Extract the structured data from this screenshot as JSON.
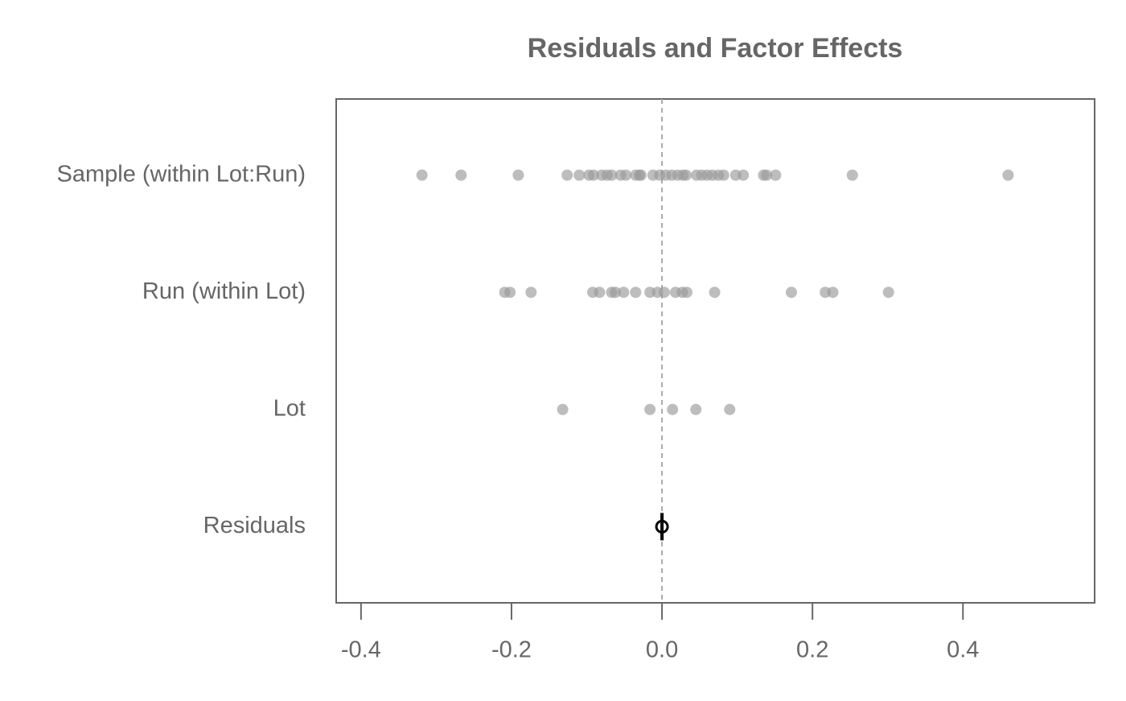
{
  "chart_data": {
    "type": "strip",
    "title": "Residuals and Factor Effects",
    "series": [
      {
        "name": "Sample (within Lot:Run)",
        "color": "#999999",
        "values": [
          -0.319,
          -0.267,
          -0.191,
          -0.126,
          -0.11,
          -0.097,
          -0.091,
          -0.08,
          -0.073,
          -0.067,
          -0.055,
          -0.048,
          -0.035,
          -0.03,
          -0.028,
          -0.012,
          -0.003,
          0.005,
          0.013,
          0.021,
          0.028,
          0.032,
          0.046,
          0.053,
          0.06,
          0.067,
          0.075,
          0.082,
          0.098,
          0.108,
          0.135,
          0.139,
          0.151,
          0.253,
          0.46
        ]
      },
      {
        "name": "Run (within Lot)",
        "color": "#999999",
        "values": [
          -0.209,
          -0.202,
          -0.174,
          -0.092,
          -0.083,
          -0.067,
          -0.062,
          -0.051,
          -0.035,
          -0.016,
          -0.006,
          0.003,
          0.018,
          0.027,
          0.033,
          0.07,
          0.172,
          0.217,
          0.227,
          0.301
        ]
      },
      {
        "name": "Lot",
        "color": "#999999",
        "values": [
          -0.132,
          -0.016,
          0.014,
          0.045,
          0.09
        ]
      },
      {
        "name": "Residuals",
        "color": "#000000",
        "values": [
          0
        ]
      }
    ],
    "xlim": [
      -0.433,
      0.575
    ],
    "xticks": [
      -0.4,
      -0.2,
      {
        "value": 0,
        "label": "0.0"
      },
      0.2,
      0.4
    ],
    "refline": 0
  }
}
